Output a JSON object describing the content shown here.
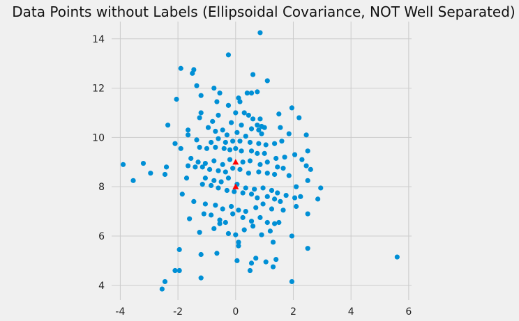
{
  "chart_data": {
    "type": "scatter",
    "title": "Data Points without Labels (Ellipsoidal Covariance, NOT Well Separated)",
    "xlabel": "",
    "ylabel": "",
    "xlim": [
      -4.3,
      6.1
    ],
    "ylim": [
      3.4,
      14.7
    ],
    "xticks": [
      -4,
      -2,
      0,
      2,
      4,
      6
    ],
    "yticks": [
      4,
      6,
      8,
      10,
      12,
      14
    ],
    "grid": true,
    "series": [
      {
        "color": "#008fd5",
        "marker": "circle",
        "points": [
          [
            0.85,
            14.25
          ],
          [
            -0.25,
            13.35
          ],
          [
            -1.9,
            12.8
          ],
          [
            -1.45,
            12.75
          ],
          [
            -1.5,
            12.6
          ],
          [
            0.6,
            12.55
          ],
          [
            1.1,
            12.3
          ],
          [
            -1.35,
            12.1
          ],
          [
            -0.75,
            12.0
          ],
          [
            -0.55,
            11.8
          ],
          [
            0.4,
            11.8
          ],
          [
            0.55,
            11.8
          ],
          [
            0.75,
            11.85
          ],
          [
            -2.05,
            11.55
          ],
          [
            0.1,
            11.6
          ],
          [
            0.15,
            11.45
          ],
          [
            -1.2,
            11.7
          ],
          [
            -0.65,
            11.45
          ],
          [
            -0.25,
            11.3
          ],
          [
            0.0,
            11.0
          ],
          [
            0.3,
            11.0
          ],
          [
            0.45,
            10.9
          ],
          [
            0.6,
            10.75
          ],
          [
            0.85,
            10.75
          ],
          [
            1.5,
            10.95
          ],
          [
            1.95,
            11.2
          ],
          [
            -1.2,
            11.0
          ],
          [
            -1.25,
            10.8
          ],
          [
            -0.6,
            10.9
          ],
          [
            -0.8,
            10.65
          ],
          [
            -0.15,
            10.6
          ],
          [
            0.2,
            10.5
          ],
          [
            0.55,
            10.35
          ],
          [
            0.75,
            10.5
          ],
          [
            0.9,
            10.45
          ],
          [
            0.8,
            10.3
          ],
          [
            1.0,
            10.4
          ],
          [
            2.2,
            10.8
          ],
          [
            -2.35,
            10.5
          ],
          [
            -1.65,
            10.3
          ],
          [
            -0.95,
            10.4
          ],
          [
            -0.7,
            10.25
          ],
          [
            -0.45,
            10.3
          ],
          [
            -0.3,
            10.1
          ],
          [
            0.05,
            10.2
          ],
          [
            0.35,
            10.05
          ],
          [
            0.9,
            10.15
          ],
          [
            1.55,
            10.4
          ],
          [
            1.85,
            10.15
          ],
          [
            2.45,
            10.1
          ],
          [
            -1.65,
            10.1
          ],
          [
            -1.35,
            9.9
          ],
          [
            -0.85,
            9.8
          ],
          [
            -0.6,
            9.95
          ],
          [
            -0.35,
            9.8
          ],
          [
            -0.1,
            9.85
          ],
          [
            0.15,
            9.85
          ],
          [
            0.5,
            9.8
          ],
          [
            0.8,
            9.75
          ],
          [
            1.05,
            9.7
          ],
          [
            1.35,
            9.75
          ],
          [
            1.6,
            9.85
          ],
          [
            2.05,
            9.3
          ],
          [
            2.3,
            9.1
          ],
          [
            -2.1,
            9.75
          ],
          [
            -1.9,
            9.55
          ],
          [
            -1.25,
            9.6
          ],
          [
            -1.0,
            9.55
          ],
          [
            -0.7,
            9.6
          ],
          [
            -0.4,
            9.55
          ],
          [
            -0.2,
            9.5
          ],
          [
            0.0,
            9.55
          ],
          [
            0.2,
            9.45
          ],
          [
            0.55,
            9.45
          ],
          [
            0.75,
            9.35
          ],
          [
            1.0,
            9.35
          ],
          [
            1.4,
            9.15
          ],
          [
            1.7,
            9.2
          ],
          [
            2.5,
            9.45
          ],
          [
            -1.55,
            9.15
          ],
          [
            -1.3,
            9.0
          ],
          [
            -1.05,
            8.95
          ],
          [
            -0.75,
            9.05
          ],
          [
            -0.45,
            8.9
          ],
          [
            -0.2,
            9.1
          ],
          [
            0.25,
            9.0
          ],
          [
            0.5,
            9.05
          ],
          [
            0.85,
            8.9
          ],
          [
            1.1,
            9.0
          ],
          [
            1.45,
            8.8
          ],
          [
            1.65,
            8.75
          ],
          [
            2.45,
            8.85
          ],
          [
            2.6,
            8.7
          ],
          [
            -3.9,
            8.9
          ],
          [
            -3.2,
            8.95
          ],
          [
            -2.95,
            8.55
          ],
          [
            -2.4,
            8.8
          ],
          [
            -2.45,
            8.5
          ],
          [
            -1.65,
            8.85
          ],
          [
            -1.4,
            8.8
          ],
          [
            -1.15,
            8.8
          ],
          [
            -0.9,
            8.7
          ],
          [
            -0.6,
            8.65
          ],
          [
            -0.35,
            8.6
          ],
          [
            -0.1,
            8.75
          ],
          [
            0.15,
            8.7
          ],
          [
            0.45,
            8.55
          ],
          [
            0.8,
            8.6
          ],
          [
            1.1,
            8.55
          ],
          [
            1.35,
            8.5
          ],
          [
            1.85,
            8.45
          ],
          [
            2.1,
            8.0
          ],
          [
            -3.55,
            8.25
          ],
          [
            -1.7,
            8.35
          ],
          [
            -1.05,
            8.35
          ],
          [
            -0.75,
            8.25
          ],
          [
            -0.5,
            8.2
          ],
          [
            -0.25,
            8.35
          ],
          [
            0.05,
            8.1
          ],
          [
            0.35,
            7.95
          ],
          [
            0.65,
            7.9
          ],
          [
            0.95,
            7.95
          ],
          [
            1.25,
            7.85
          ],
          [
            1.45,
            7.75
          ],
          [
            1.75,
            7.65
          ],
          [
            2.25,
            7.6
          ],
          [
            2.5,
            8.25
          ],
          [
            2.95,
            7.95
          ],
          [
            -1.85,
            7.7
          ],
          [
            -1.15,
            8.1
          ],
          [
            -0.85,
            8.05
          ],
          [
            -0.6,
            7.95
          ],
          [
            -0.3,
            7.85
          ],
          [
            -0.05,
            7.8
          ],
          [
            0.25,
            7.75
          ],
          [
            0.55,
            7.7
          ],
          [
            0.75,
            7.55
          ],
          [
            1.1,
            7.6
          ],
          [
            1.35,
            7.5
          ],
          [
            1.55,
            7.4
          ],
          [
            2.05,
            7.55
          ],
          [
            2.85,
            7.5
          ],
          [
            -1.45,
            7.4
          ],
          [
            -1.05,
            7.3
          ],
          [
            -0.7,
            7.25
          ],
          [
            -0.45,
            7.1
          ],
          [
            -0.15,
            7.2
          ],
          [
            0.1,
            7.05
          ],
          [
            0.35,
            7.0
          ],
          [
            0.7,
            7.15
          ],
          [
            0.95,
            7.3
          ],
          [
            1.25,
            7.1
          ],
          [
            1.65,
            7.05
          ],
          [
            2.1,
            7.2
          ],
          [
            -1.6,
            6.7
          ],
          [
            -1.1,
            6.9
          ],
          [
            -0.85,
            6.85
          ],
          [
            -0.55,
            6.65
          ],
          [
            -0.35,
            6.55
          ],
          [
            -0.1,
            6.9
          ],
          [
            0.25,
            6.75
          ],
          [
            0.55,
            6.6
          ],
          [
            0.85,
            6.75
          ],
          [
            1.1,
            6.55
          ],
          [
            1.35,
            6.5
          ],
          [
            1.5,
            6.55
          ],
          [
            2.5,
            6.9
          ],
          [
            -0.75,
            6.3
          ],
          [
            -0.55,
            6.5
          ],
          [
            -0.25,
            6.1
          ],
          [
            0.0,
            6.05
          ],
          [
            0.3,
            6.25
          ],
          [
            0.6,
            6.4
          ],
          [
            0.9,
            6.05
          ],
          [
            1.2,
            6.2
          ],
          [
            -1.25,
            6.15
          ],
          [
            1.95,
            6.0
          ],
          [
            0.1,
            5.75
          ],
          [
            0.1,
            5.6
          ],
          [
            1.3,
            5.75
          ],
          [
            -1.95,
            5.45
          ],
          [
            -1.2,
            5.25
          ],
          [
            -0.65,
            5.3
          ],
          [
            0.7,
            5.1
          ],
          [
            1.4,
            5.05
          ],
          [
            2.5,
            5.5
          ],
          [
            0.05,
            5.0
          ],
          [
            0.55,
            4.9
          ],
          [
            1.05,
            4.95
          ],
          [
            1.3,
            4.75
          ],
          [
            -2.1,
            4.6
          ],
          [
            -1.95,
            4.6
          ],
          [
            -1.2,
            4.3
          ],
          [
            0.5,
            4.6
          ],
          [
            1.95,
            4.15
          ],
          [
            -2.45,
            4.15
          ],
          [
            -2.55,
            3.85
          ],
          [
            5.6,
            5.15
          ]
        ]
      },
      {
        "color": "#ff0000",
        "marker": "triangle",
        "points": [
          [
            0.0,
            9.0
          ],
          [
            0.0,
            8.0
          ]
        ]
      }
    ]
  }
}
